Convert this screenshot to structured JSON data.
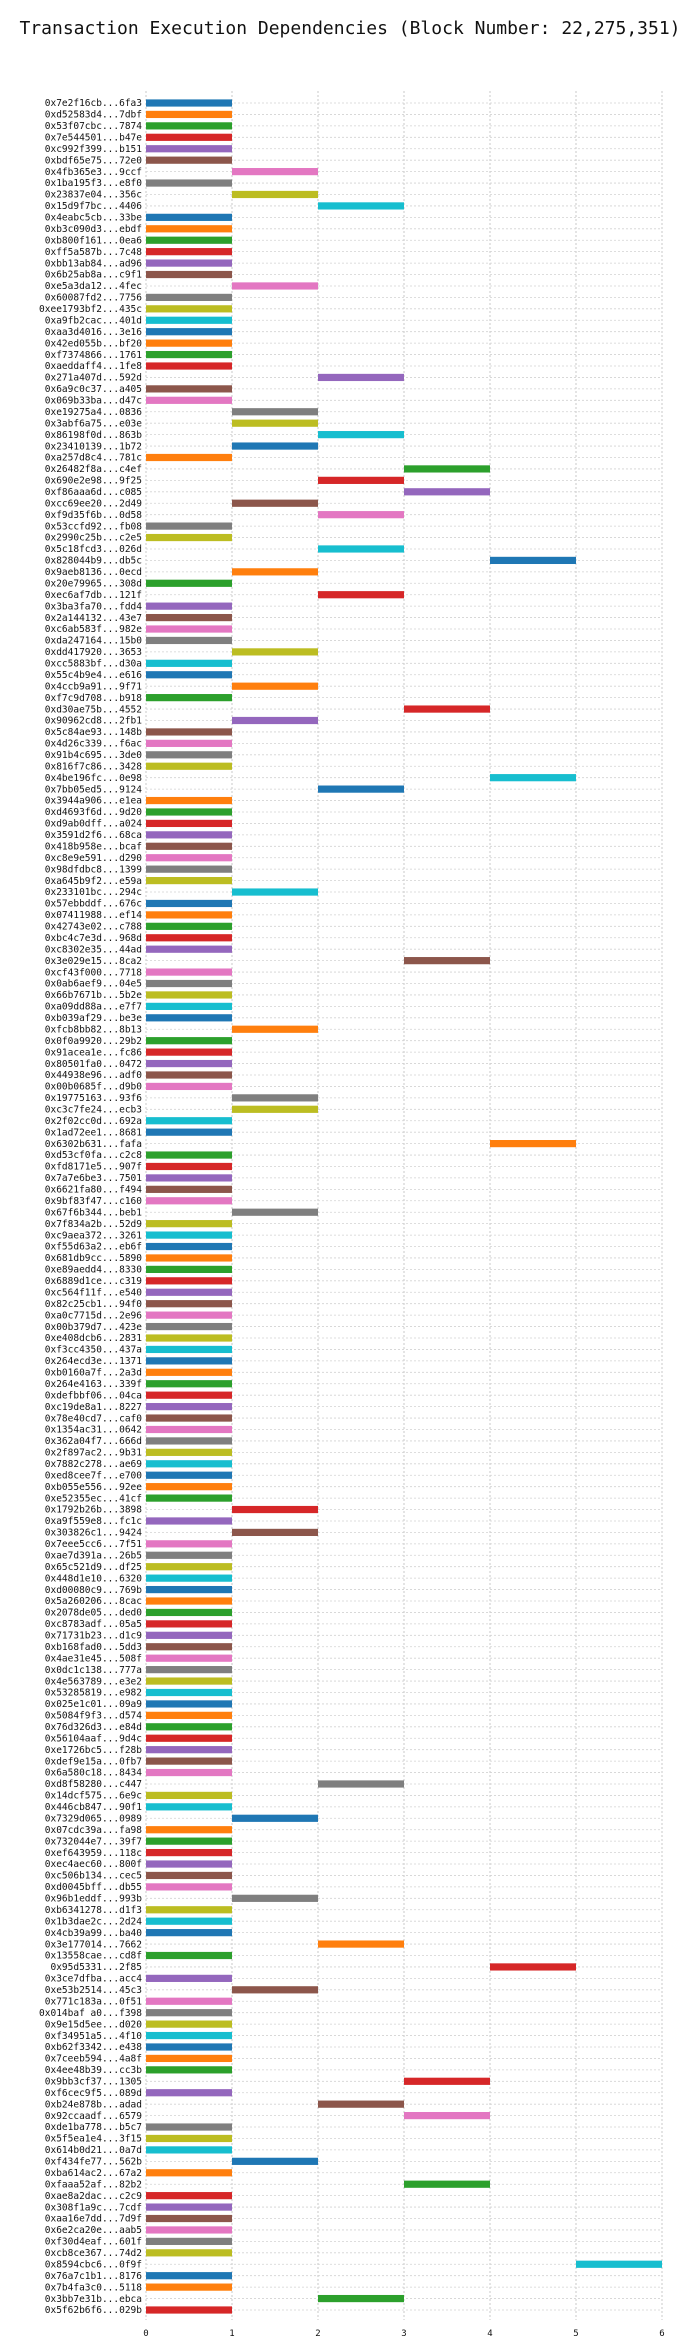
{
  "chart_data": {
    "type": "gantt",
    "title": "Transaction Execution Dependencies (Block Number: 22,275,351)",
    "xlabel": "",
    "ylabel": "",
    "xlim": [
      0,
      6
    ],
    "x_ticks": [
      "0",
      "1",
      "2",
      "3",
      "4",
      "5",
      "6"
    ],
    "grid": true,
    "palette": [
      "#1f77b4",
      "#ff7f0e",
      "#2ca02c",
      "#d62728",
      "#9467bd",
      "#8c564b",
      "#e377c2",
      "#7f7f7f",
      "#bcbd22",
      "#17becf"
    ],
    "transactions": [
      {
        "label": "0x7e2f16cb...6fa3",
        "start": 0,
        "end": 1
      },
      {
        "label": "0xd52583d4...7dbf",
        "start": 0,
        "end": 1
      },
      {
        "label": "0x53f07cbc...7874",
        "start": 0,
        "end": 1
      },
      {
        "label": "0x7e544501...b47e",
        "start": 0,
        "end": 1
      },
      {
        "label": "0xc992f399...b151",
        "start": 0,
        "end": 1
      },
      {
        "label": "0xbdf65e75...72e0",
        "start": 0,
        "end": 1
      },
      {
        "label": "0x4fb365e3...9ccf",
        "start": 1,
        "end": 2
      },
      {
        "label": "0x1ba195f3...e8f0",
        "start": 0,
        "end": 1
      },
      {
        "label": "0x23837e04...356c",
        "start": 1,
        "end": 2
      },
      {
        "label": "0x15d9f7bc...4406",
        "start": 2,
        "end": 3
      },
      {
        "label": "0x4eabc5cb...33be",
        "start": 0,
        "end": 1
      },
      {
        "label": "0xb3c090d3...ebdf",
        "start": 0,
        "end": 1
      },
      {
        "label": "0xb800f161...0ea6",
        "start": 0,
        "end": 1
      },
      {
        "label": "0xff5a587b...7c48",
        "start": 0,
        "end": 1
      },
      {
        "label": "0xbb13ab84...ad96",
        "start": 0,
        "end": 1
      },
      {
        "label": "0x6b25ab8a...c9f1",
        "start": 0,
        "end": 1
      },
      {
        "label": "0xe5a3da12...4fec",
        "start": 1,
        "end": 2
      },
      {
        "label": "0x60087fd2...7756",
        "start": 0,
        "end": 1
      },
      {
        "label": "0xee1793bf2...435c",
        "start": 0,
        "end": 1
      },
      {
        "label": "0xa9fb2cac...401d",
        "start": 0,
        "end": 1
      },
      {
        "label": "0xaa3d4016...3e16",
        "start": 0,
        "end": 1
      },
      {
        "label": "0x42ed055b...bf20",
        "start": 0,
        "end": 1
      },
      {
        "label": "0xf7374866...1761",
        "start": 0,
        "end": 1
      },
      {
        "label": "0xaeddaff4...1fe8",
        "start": 0,
        "end": 1
      },
      {
        "label": "0x271a407d...592d",
        "start": 2,
        "end": 3
      },
      {
        "label": "0x6a9c0c37...a405",
        "start": 0,
        "end": 1
      },
      {
        "label": "0x069b33ba...d47c",
        "start": 0,
        "end": 1
      },
      {
        "label": "0xe19275a4...0836",
        "start": 1,
        "end": 2
      },
      {
        "label": "0x3abf6a75...e03e",
        "start": 1,
        "end": 2
      },
      {
        "label": "0x86198f0d...863b",
        "start": 2,
        "end": 3
      },
      {
        "label": "0x23410139...1b72",
        "start": 1,
        "end": 2
      },
      {
        "label": "0xa257d8c4...781c",
        "start": 0,
        "end": 1
      },
      {
        "label": "0x26482f8a...c4ef",
        "start": 3,
        "end": 4
      },
      {
        "label": "0x690e2e98...9f25",
        "start": 2,
        "end": 3
      },
      {
        "label": "0xf86aaa6d...c085",
        "start": 3,
        "end": 4
      },
      {
        "label": "0xcc69ee20...2d49",
        "start": 1,
        "end": 2
      },
      {
        "label": "0xf9d35f6b...0d58",
        "start": 2,
        "end": 3
      },
      {
        "label": "0x53ccfd92...fb08",
        "start": 0,
        "end": 1
      },
      {
        "label": "0x2990c25b...c2e5",
        "start": 0,
        "end": 1
      },
      {
        "label": "0x5c18fcd3...026d",
        "start": 2,
        "end": 3
      },
      {
        "label": "0x828044b9...db5c",
        "start": 4,
        "end": 5
      },
      {
        "label": "0x9aeb8136...0ecd",
        "start": 1,
        "end": 2
      },
      {
        "label": "0x20e79965...308d",
        "start": 0,
        "end": 1
      },
      {
        "label": "0xec6af7db...121f",
        "start": 2,
        "end": 3
      },
      {
        "label": "0x3ba3fa70...fdd4",
        "start": 0,
        "end": 1
      },
      {
        "label": "0x2a144132...43e7",
        "start": 0,
        "end": 1
      },
      {
        "label": "0xc6ab583f...982e",
        "start": 0,
        "end": 1
      },
      {
        "label": "0xda247164...15b0",
        "start": 0,
        "end": 1
      },
      {
        "label": "0xdd417920...3653",
        "start": 1,
        "end": 2
      },
      {
        "label": "0xcc5883bf...d30a",
        "start": 0,
        "end": 1
      },
      {
        "label": "0x55c4b9e4...e616",
        "start": 0,
        "end": 1
      },
      {
        "label": "0x4ccb9a91...9f71",
        "start": 1,
        "end": 2
      },
      {
        "label": "0xf7c9d708...b918",
        "start": 0,
        "end": 1
      },
      {
        "label": "0xd30ae75b...4552",
        "start": 3,
        "end": 4
      },
      {
        "label": "0x90962cd8...2fb1",
        "start": 1,
        "end": 2
      },
      {
        "label": "0x5c84ae93...148b",
        "start": 0,
        "end": 1
      },
      {
        "label": "0x4d26c339...f6ac",
        "start": 0,
        "end": 1
      },
      {
        "label": "0x91b4c695...3de0",
        "start": 0,
        "end": 1
      },
      {
        "label": "0x816f7c86...3428",
        "start": 0,
        "end": 1
      },
      {
        "label": "0x4be196fc...0e98",
        "start": 4,
        "end": 5
      },
      {
        "label": "0x7bb05ed5...9124",
        "start": 2,
        "end": 3
      },
      {
        "label": "0x3944a906...e1ea",
        "start": 0,
        "end": 1
      },
      {
        "label": "0xd4693f6d...9d20",
        "start": 0,
        "end": 1
      },
      {
        "label": "0xd9ab0dff...a024",
        "start": 0,
        "end": 1
      },
      {
        "label": "0x3591d2f6...68ca",
        "start": 0,
        "end": 1
      },
      {
        "label": "0x418b958e...bcaf",
        "start": 0,
        "end": 1
      },
      {
        "label": "0xc8e9e591...d290",
        "start": 0,
        "end": 1
      },
      {
        "label": "0x98dfdbc8...1399",
        "start": 0,
        "end": 1
      },
      {
        "label": "0xa645b9f2...e59a",
        "start": 0,
        "end": 1
      },
      {
        "label": "0x233101bc...294c",
        "start": 1,
        "end": 2
      },
      {
        "label": "0x57ebbddf...676c",
        "start": 0,
        "end": 1
      },
      {
        "label": "0x07411988...ef14",
        "start": 0,
        "end": 1
      },
      {
        "label": "0x42743e02...c788",
        "start": 0,
        "end": 1
      },
      {
        "label": "0xbc4c7e3d...968d",
        "start": 0,
        "end": 1
      },
      {
        "label": "0xc8302e35...44ad",
        "start": 0,
        "end": 1
      },
      {
        "label": "0x3e029e15...8ca2",
        "start": 3,
        "end": 4
      },
      {
        "label": "0xcf43f000...7718",
        "start": 0,
        "end": 1
      },
      {
        "label": "0x0ab6aef9...04e5",
        "start": 0,
        "end": 1
      },
      {
        "label": "0x66b7671b...5b2e",
        "start": 0,
        "end": 1
      },
      {
        "label": "0xa09dd88a...e7f7",
        "start": 0,
        "end": 1
      },
      {
        "label": "0xb039af29...be3e",
        "start": 0,
        "end": 1
      },
      {
        "label": "0xfcb8bb82...8b13",
        "start": 1,
        "end": 2
      },
      {
        "label": "0x0f0a9920...29b2",
        "start": 0,
        "end": 1
      },
      {
        "label": "0x91acea1e...fc86",
        "start": 0,
        "end": 1
      },
      {
        "label": "0x80501fa0...0472",
        "start": 0,
        "end": 1
      },
      {
        "label": "0x44938e96...adf0",
        "start": 0,
        "end": 1
      },
      {
        "label": "0x00b0685f...d9b0",
        "start": 0,
        "end": 1
      },
      {
        "label": "0x19775163...93f6",
        "start": 1,
        "end": 2
      },
      {
        "label": "0xc3c7fe24...ecb3",
        "start": 1,
        "end": 2
      },
      {
        "label": "0x2f02cc0d...692a",
        "start": 0,
        "end": 1
      },
      {
        "label": "0x1ad72ee1...8681",
        "start": 0,
        "end": 1
      },
      {
        "label": "0x6302b631...fafa",
        "start": 4,
        "end": 5
      },
      {
        "label": "0xd53cf0fa...c2c8",
        "start": 0,
        "end": 1
      },
      {
        "label": "0xfd8171e5...907f",
        "start": 0,
        "end": 1
      },
      {
        "label": "0x7a7e6be3...7501",
        "start": 0,
        "end": 1
      },
      {
        "label": "0x6621fa80...f494",
        "start": 0,
        "end": 1
      },
      {
        "label": "0x9bf83f47...c160",
        "start": 0,
        "end": 1
      },
      {
        "label": "0x67f6b344...beb1",
        "start": 1,
        "end": 2
      },
      {
        "label": "0x7f834a2b...52d9",
        "start": 0,
        "end": 1
      },
      {
        "label": "0xc9aea372...3261",
        "start": 0,
        "end": 1
      },
      {
        "label": "0xf55d63a2...eb6f",
        "start": 0,
        "end": 1
      },
      {
        "label": "0x681db9cc...5890",
        "start": 0,
        "end": 1
      },
      {
        "label": "0xe89aedd4...8330",
        "start": 0,
        "end": 1
      },
      {
        "label": "0x6889d1ce...c319",
        "start": 0,
        "end": 1
      },
      {
        "label": "0xc564f11f...e540",
        "start": 0,
        "end": 1
      },
      {
        "label": "0x82c25cb1...94f0",
        "start": 0,
        "end": 1
      },
      {
        "label": "0xa0c7715d...2e96",
        "start": 0,
        "end": 1
      },
      {
        "label": "0x00b379d7...423e",
        "start": 0,
        "end": 1
      },
      {
        "label": "0xe408dcb6...2831",
        "start": 0,
        "end": 1
      },
      {
        "label": "0xf3cc4350...437a",
        "start": 0,
        "end": 1
      },
      {
        "label": "0x264ecd3e...1371",
        "start": 0,
        "end": 1
      },
      {
        "label": "0xb0160a7f...2a3d",
        "start": 0,
        "end": 1
      },
      {
        "label": "0x264e4163...339f",
        "start": 0,
        "end": 1
      },
      {
        "label": "0xdefbbf06...04ca",
        "start": 0,
        "end": 1
      },
      {
        "label": "0xc19de8a1...8227",
        "start": 0,
        "end": 1
      },
      {
        "label": "0x78e40cd7...caf0",
        "start": 0,
        "end": 1
      },
      {
        "label": "0x1354ac31...0642",
        "start": 0,
        "end": 1
      },
      {
        "label": "0x362a04f7...666d",
        "start": 0,
        "end": 1
      },
      {
        "label": "0x2f897ac2...9b31",
        "start": 0,
        "end": 1
      },
      {
        "label": "0x7882c278...ae69",
        "start": 0,
        "end": 1
      },
      {
        "label": "0xed8cee7f...e700",
        "start": 0,
        "end": 1
      },
      {
        "label": "0xb055e556...92ee",
        "start": 0,
        "end": 1
      },
      {
        "label": "0xe52355ec...41cf",
        "start": 0,
        "end": 1
      },
      {
        "label": "0x1792b26b...3898",
        "start": 1,
        "end": 2
      },
      {
        "label": "0xa9f559e8...fc1c",
        "start": 0,
        "end": 1
      },
      {
        "label": "0x303826c1...9424",
        "start": 1,
        "end": 2
      },
      {
        "label": "0x7eee5cc6...7f51",
        "start": 0,
        "end": 1
      },
      {
        "label": "0xae7d391a...26b5",
        "start": 0,
        "end": 1
      },
      {
        "label": "0x65c521d9...df25",
        "start": 0,
        "end": 1
      },
      {
        "label": "0x448d1e10...6320",
        "start": 0,
        "end": 1
      },
      {
        "label": "0xd00080c9...769b",
        "start": 0,
        "end": 1
      },
      {
        "label": "0x5a260206...8cac",
        "start": 0,
        "end": 1
      },
      {
        "label": "0x2078de05...ded0",
        "start": 0,
        "end": 1
      },
      {
        "label": "0xc8783adf...05a5",
        "start": 0,
        "end": 1
      },
      {
        "label": "0x71731b23...d1c9",
        "start": 0,
        "end": 1
      },
      {
        "label": "0xb168fad0...5dd3",
        "start": 0,
        "end": 1
      },
      {
        "label": "0x4ae31e45...508f",
        "start": 0,
        "end": 1
      },
      {
        "label": "0x0dc1c138...777a",
        "start": 0,
        "end": 1
      },
      {
        "label": "0x4e563789...e3e2",
        "start": 0,
        "end": 1
      },
      {
        "label": "0x53285819...e982",
        "start": 0,
        "end": 1
      },
      {
        "label": "0x025e1c01...09a9",
        "start": 0,
        "end": 1
      },
      {
        "label": "0x5084f9f3...d574",
        "start": 0,
        "end": 1
      },
      {
        "label": "0x76d326d3...e84d",
        "start": 0,
        "end": 1
      },
      {
        "label": "0x56104aaf...9d4c",
        "start": 0,
        "end": 1
      },
      {
        "label": "0xe1726bc5...f28b",
        "start": 0,
        "end": 1
      },
      {
        "label": "0xdef9e15a...0fb7",
        "start": 0,
        "end": 1
      },
      {
        "label": "0x6a580c18...8434",
        "start": 0,
        "end": 1
      },
      {
        "label": "0xd8f58280...c447",
        "start": 2,
        "end": 3
      },
      {
        "label": "0x14dcf575...6e9c",
        "start": 0,
        "end": 1
      },
      {
        "label": "0x446cb847...90f1",
        "start": 0,
        "end": 1
      },
      {
        "label": "0x7329d065...0989",
        "start": 1,
        "end": 2
      },
      {
        "label": "0x07cdc39a...fa98",
        "start": 0,
        "end": 1
      },
      {
        "label": "0x732044e7...39f7",
        "start": 0,
        "end": 1
      },
      {
        "label": "0xef643959...118c",
        "start": 0,
        "end": 1
      },
      {
        "label": "0xec4aec60...800f",
        "start": 0,
        "end": 1
      },
      {
        "label": "0xc506b134...cec5",
        "start": 0,
        "end": 1
      },
      {
        "label": "0xd0045bff...db55",
        "start": 0,
        "end": 1
      },
      {
        "label": "0x96b1eddf...993b",
        "start": 1,
        "end": 2
      },
      {
        "label": "0xb6341278...d1f3",
        "start": 0,
        "end": 1
      },
      {
        "label": "0x1b3dae2c...2d24",
        "start": 0,
        "end": 1
      },
      {
        "label": "0x4cb39a99...ba40",
        "start": 0,
        "end": 1
      },
      {
        "label": "0x3e177014...7662",
        "start": 2,
        "end": 3
      },
      {
        "label": "0x13558cae...cd8f",
        "start": 0,
        "end": 1
      },
      {
        "label": "0x95d5331...2f85",
        "start": 4,
        "end": 5
      },
      {
        "label": "0x3ce7dfba...acc4",
        "start": 0,
        "end": 1
      },
      {
        "label": "0xe53b2514...45c3",
        "start": 1,
        "end": 2
      },
      {
        "label": "0x771c183a...0f51",
        "start": 0,
        "end": 1
      },
      {
        "label": "0x014baf a0...f398",
        "start": 0,
        "end": 1
      },
      {
        "label": "0x9e15d5ee...d020",
        "start": 0,
        "end": 1
      },
      {
        "label": "0xf34951a5...4f10",
        "start": 0,
        "end": 1
      },
      {
        "label": "0xb62f3342...e438",
        "start": 0,
        "end": 1
      },
      {
        "label": "0x7ceeb594...4a8f",
        "start": 0,
        "end": 1
      },
      {
        "label": "0x4ee48b39...cc3b",
        "start": 0,
        "end": 1
      },
      {
        "label": "0x9bb3cf37...1305",
        "start": 3,
        "end": 4
      },
      {
        "label": "0xf6cec9f5...089d",
        "start": 0,
        "end": 1
      },
      {
        "label": "0xb24e878b...adad",
        "start": 2,
        "end": 3
      },
      {
        "label": "0x92ccaadf...6579",
        "start": 3,
        "end": 4
      },
      {
        "label": "0xde1ba778...b5c7",
        "start": 0,
        "end": 1
      },
      {
        "label": "0x5f5ea1e4...3f15",
        "start": 0,
        "end": 1
      },
      {
        "label": "0x614b0d21...0a7d",
        "start": 0,
        "end": 1
      },
      {
        "label": "0xf434fe77...562b",
        "start": 1,
        "end": 2
      },
      {
        "label": "0xba614ac2...67a2",
        "start": 0,
        "end": 1
      },
      {
        "label": "0xfaaa52af...82b2",
        "start": 3,
        "end": 4
      },
      {
        "label": "0xae8a2dac...c2c9",
        "start": 0,
        "end": 1
      },
      {
        "label": "0x308f1a9c...7cdf",
        "start": 0,
        "end": 1
      },
      {
        "label": "0xaa16e7dd...7d9f",
        "start": 0,
        "end": 1
      },
      {
        "label": "0x6e2ca20e...aab5",
        "start": 0,
        "end": 1
      },
      {
        "label": "0xf30d4eaf...601f",
        "start": 0,
        "end": 1
      },
      {
        "label": "0xcb8ce367...74d2",
        "start": 0,
        "end": 1
      },
      {
        "label": "0x8594cbc6...0f9f",
        "start": 5,
        "end": 6
      },
      {
        "label": "0x76a7c1b1...8176",
        "start": 0,
        "end": 1
      },
      {
        "label": "0x7b4fa3c0...5118",
        "start": 0,
        "end": 1
      },
      {
        "label": "0x3bb7e31b...ebca",
        "start": 2,
        "end": 3
      },
      {
        "label": "0x5f62b6f6...029b",
        "start": 0,
        "end": 1
      }
    ]
  }
}
